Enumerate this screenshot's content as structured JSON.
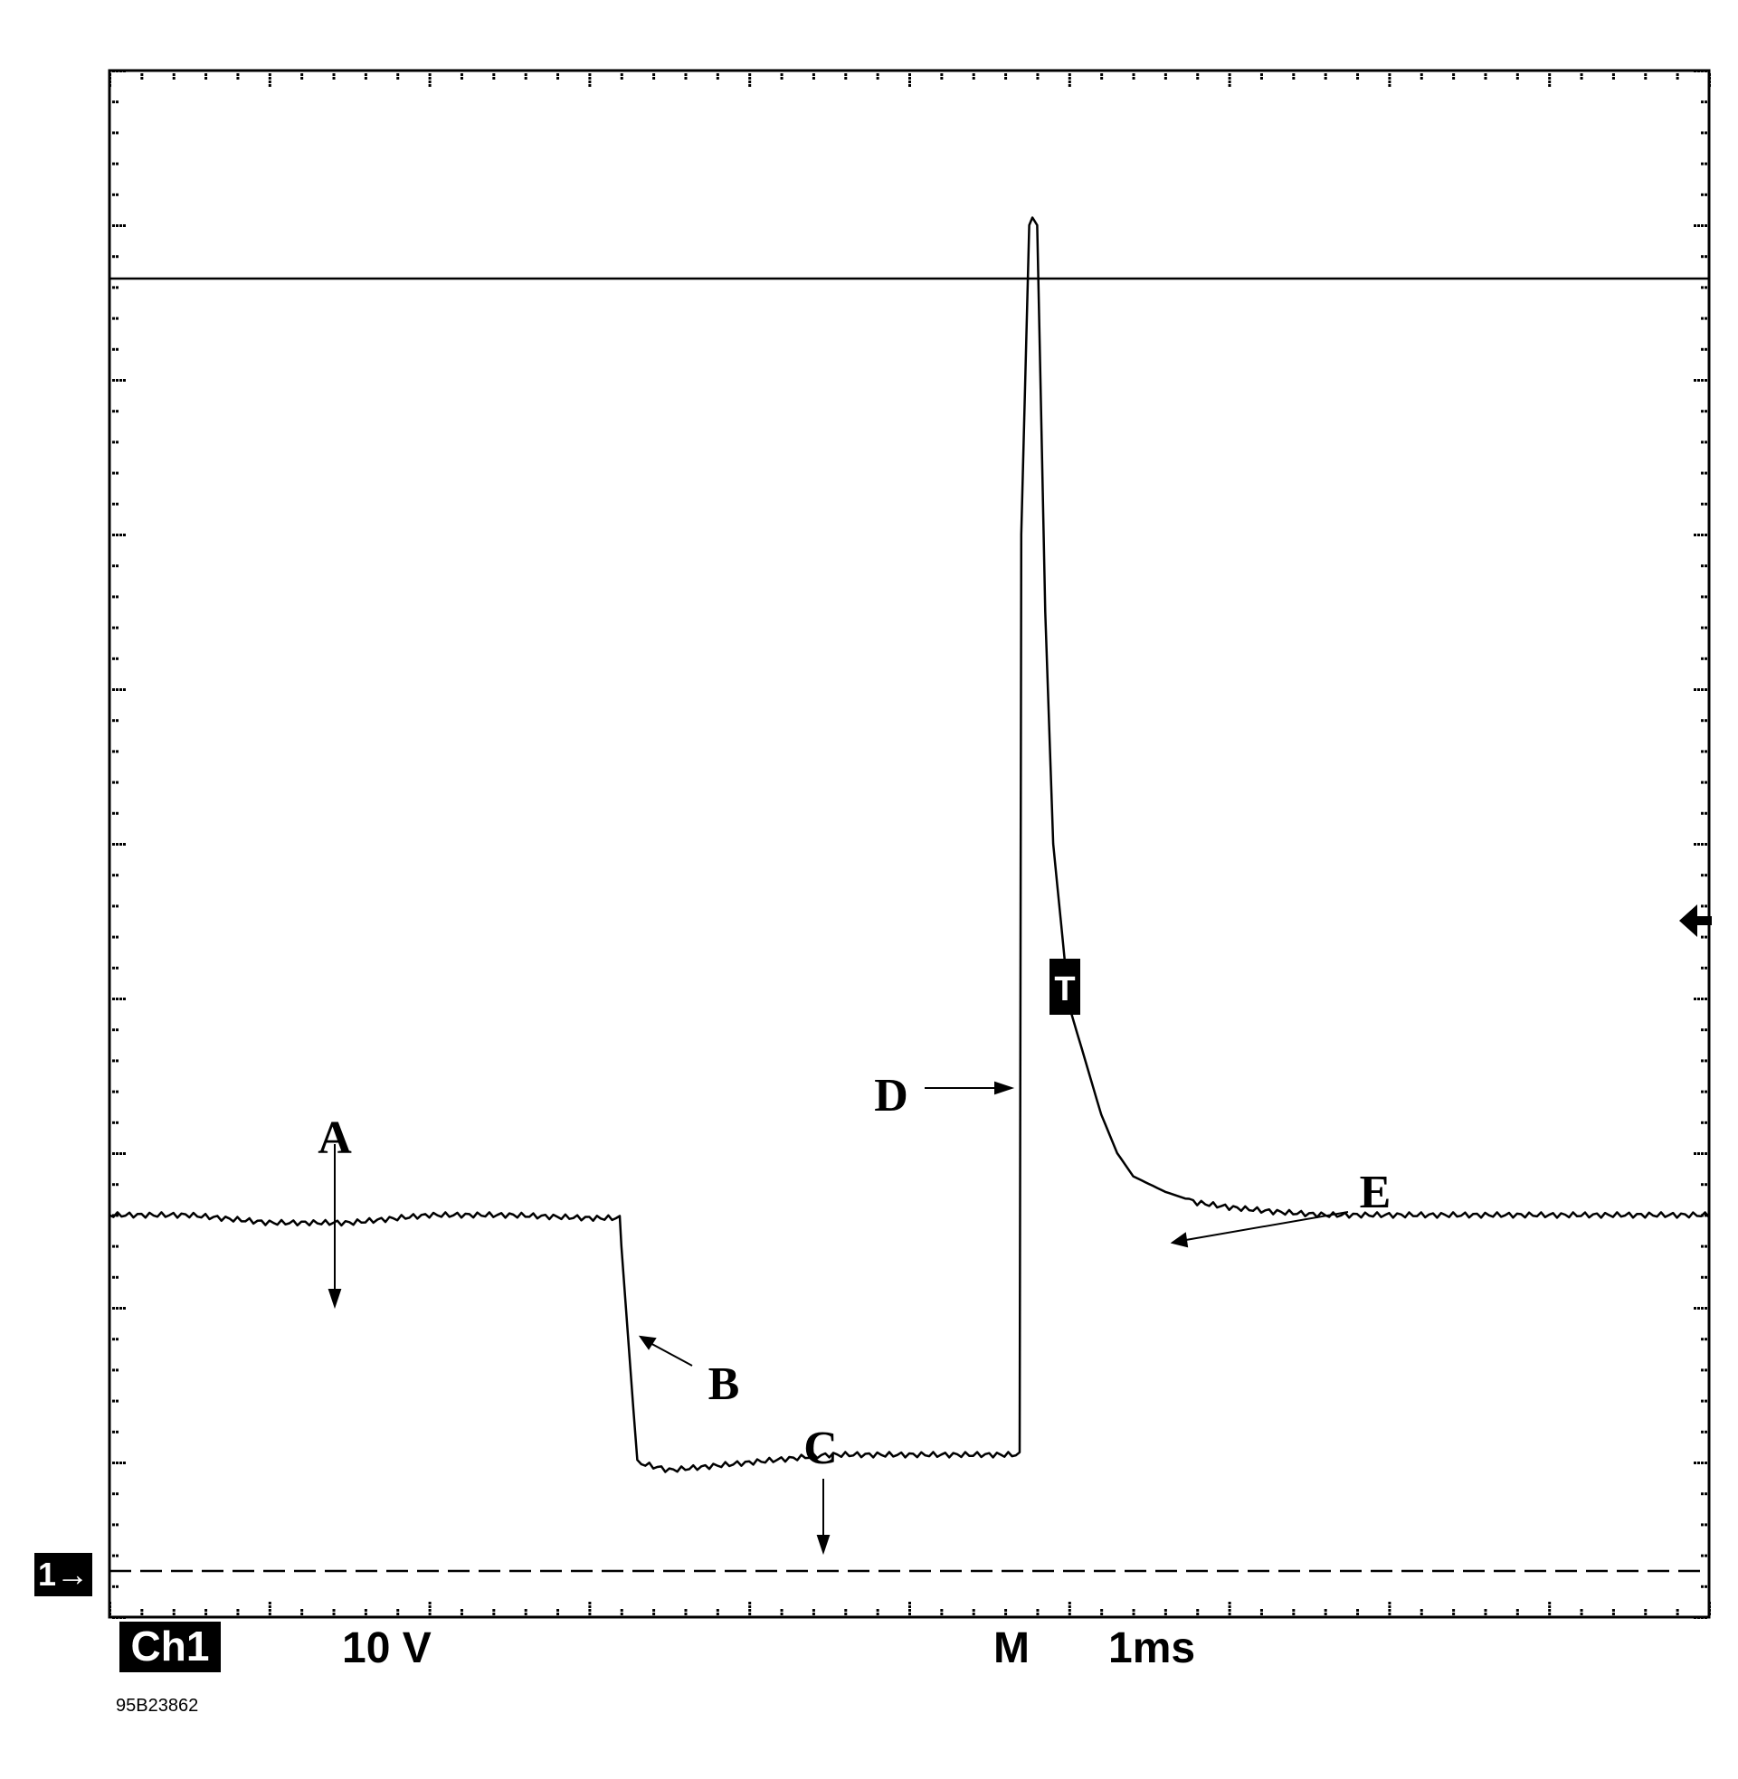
{
  "figure_code": "95B23862",
  "channel": {
    "label": "Ch1",
    "scale": "10 V",
    "ground_marker": "1→"
  },
  "timebase": {
    "prefix": "M",
    "value": "1ms"
  },
  "trigger_marker": "T",
  "trigger_level_icon": "left-arrow",
  "annotations": [
    "A",
    "B",
    "C",
    "D",
    "E"
  ],
  "colors": {
    "trace": "#000000",
    "background": "#ffffff"
  },
  "chart_data": {
    "type": "line",
    "title": "",
    "xlabel": "",
    "ylabel": "",
    "x_unit": "ms",
    "y_unit": "V",
    "grid": "dotted",
    "xlim": [
      0,
      10
    ],
    "ylim": [
      -1,
      9
    ],
    "series": [
      {
        "x": [
          0.0,
          0.5,
          1.0,
          1.5,
          2.0,
          2.5,
          3.0,
          3.19,
          3.2,
          3.3,
          3.5,
          4.0,
          4.5,
          5.0,
          5.5,
          5.69,
          5.7,
          5.75,
          5.77,
          5.8,
          5.82,
          5.85,
          5.9,
          6.0,
          6.1,
          6.2,
          6.3,
          6.4,
          6.6,
          6.8,
          7.0,
          7.3,
          7.6,
          8.0,
          8.5,
          9.0,
          9.5,
          10.0
        ],
        "y": [
          1.6,
          1.6,
          1.55,
          1.55,
          1.6,
          1.6,
          1.58,
          1.58,
          1.4,
          0.0,
          -0.05,
          0.0,
          0.05,
          0.05,
          0.05,
          0.05,
          6.0,
          8.0,
          8.05,
          8.0,
          7.0,
          5.5,
          4.0,
          2.95,
          2.6,
          2.25,
          2.0,
          1.85,
          1.75,
          1.68,
          1.65,
          1.62,
          1.6,
          1.6,
          1.6,
          1.6,
          1.6,
          1.6
        ]
      }
    ]
  }
}
